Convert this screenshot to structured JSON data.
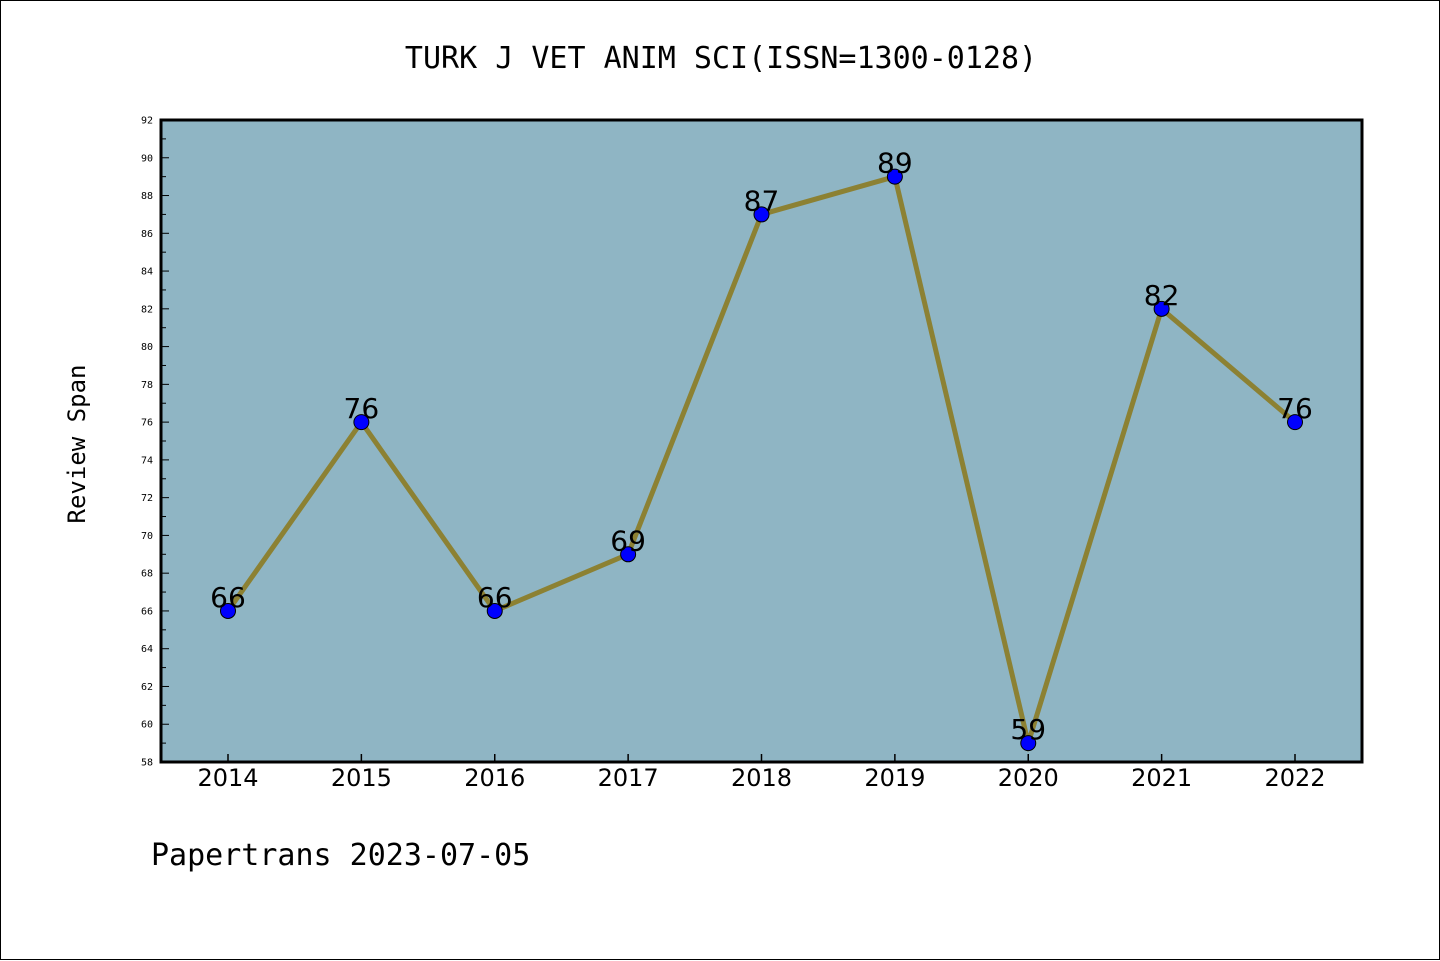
{
  "chart_data": {
    "type": "line",
    "title": "TURK J VET ANIM SCI(ISSN=1300-0128)",
    "ylabel": "Review Span",
    "xlabel": "",
    "categories": [
      "2014",
      "2015",
      "2016",
      "2017",
      "2018",
      "2019",
      "2020",
      "2021",
      "2022"
    ],
    "series": [
      {
        "values": [
          66,
          76,
          66,
          69,
          87,
          89,
          59,
          82,
          76
        ]
      }
    ],
    "ylim": [
      58,
      92
    ],
    "yticks": [
      "58",
      "60",
      "62",
      "64",
      "66",
      "68",
      "70",
      "72",
      "74",
      "76",
      "78",
      "80",
      "82",
      "84",
      "86",
      "88",
      "90",
      "92"
    ],
    "data_labels": [
      "66",
      "76",
      "66",
      "69",
      "87",
      "89",
      "59",
      "82",
      "76"
    ],
    "grid": false,
    "colors": {
      "plot_background": "#8fb5c4",
      "line": "#8c8133",
      "marker": "#0000ff"
    }
  },
  "footer": "Papertrans 2023-07-05"
}
